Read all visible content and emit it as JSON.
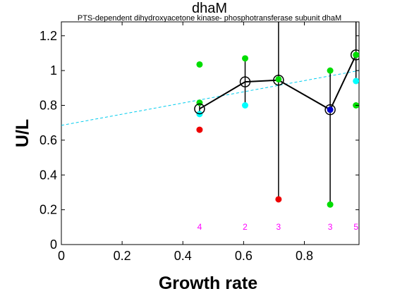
{
  "chart_data": {
    "type": "scatter",
    "title": "dhaM",
    "subtitle": "PTS-dependent dihydroxyacetone kinase- phosphotransferase subunit dhaM",
    "xlabel": "Growth rate",
    "ylabel": "U/L",
    "xlim": [
      0,
      0.98
    ],
    "ylim": [
      0,
      1.28
    ],
    "xticks": [
      0,
      0.2,
      0.4,
      0.6,
      0.8
    ],
    "xtick_labels": [
      "0",
      "0.2",
      "0.4",
      "0.6",
      "0.8"
    ],
    "yticks": [
      0,
      0.2,
      0.4,
      0.6,
      0.8,
      1,
      1.2
    ],
    "ytick_labels": [
      "0",
      "0.2",
      "0.4",
      "0.6",
      "0.8",
      "1",
      "1.2"
    ],
    "grid": false,
    "colors": {
      "green": "#00dd00",
      "cyan": "#00ffff",
      "red": "#ee0000",
      "blue": "#0000cc",
      "count": "#ff00ff",
      "fit": "#00ccee",
      "mean": "#000000"
    },
    "mean_points": [
      {
        "x": 0.455,
        "y": 0.78
      },
      {
        "x": 0.605,
        "y": 0.935
      },
      {
        "x": 0.715,
        "y": 0.945
      },
      {
        "x": 0.885,
        "y": 0.775
      },
      {
        "x": 0.97,
        "y": 1.09
      }
    ],
    "error_bars": [
      {
        "x": 0.455,
        "low": 0.75,
        "high": 0.81
      },
      {
        "x": 0.605,
        "low": 0.8,
        "high": 1.07
      },
      {
        "x": 0.715,
        "low": 0.26,
        "high": 1.3
      },
      {
        "x": 0.885,
        "low": 0.23,
        "high": 1.0
      },
      {
        "x": 0.97,
        "low": 0.94,
        "high": 1.3
      }
    ],
    "replicate_points": [
      {
        "x": 0.455,
        "y": 1.035,
        "color": "green"
      },
      {
        "x": 0.455,
        "y": 0.815,
        "color": "green"
      },
      {
        "x": 0.455,
        "y": 0.75,
        "color": "cyan"
      },
      {
        "x": 0.455,
        "y": 0.66,
        "color": "red"
      },
      {
        "x": 0.605,
        "y": 1.07,
        "color": "green"
      },
      {
        "x": 0.605,
        "y": 0.8,
        "color": "cyan"
      },
      {
        "x": 0.715,
        "y": 0.95,
        "color": "green"
      },
      {
        "x": 0.715,
        "y": 0.26,
        "color": "red"
      },
      {
        "x": 0.885,
        "y": 1.0,
        "color": "green"
      },
      {
        "x": 0.885,
        "y": 0.775,
        "color": "blue"
      },
      {
        "x": 0.885,
        "y": 0.23,
        "color": "green"
      },
      {
        "x": 0.97,
        "y": 1.09,
        "color": "green"
      },
      {
        "x": 0.97,
        "y": 0.94,
        "color": "cyan"
      },
      {
        "x": 0.97,
        "y": 0.8,
        "color": "green"
      }
    ],
    "fit_line": {
      "x": [
        0,
        0.98
      ],
      "y": [
        0.685,
        1.0
      ]
    },
    "counts": [
      {
        "x": 0.455,
        "label": "4"
      },
      {
        "x": 0.605,
        "label": "2"
      },
      {
        "x": 0.715,
        "label": "3"
      },
      {
        "x": 0.885,
        "label": "3"
      },
      {
        "x": 0.97,
        "label": "5"
      }
    ]
  }
}
